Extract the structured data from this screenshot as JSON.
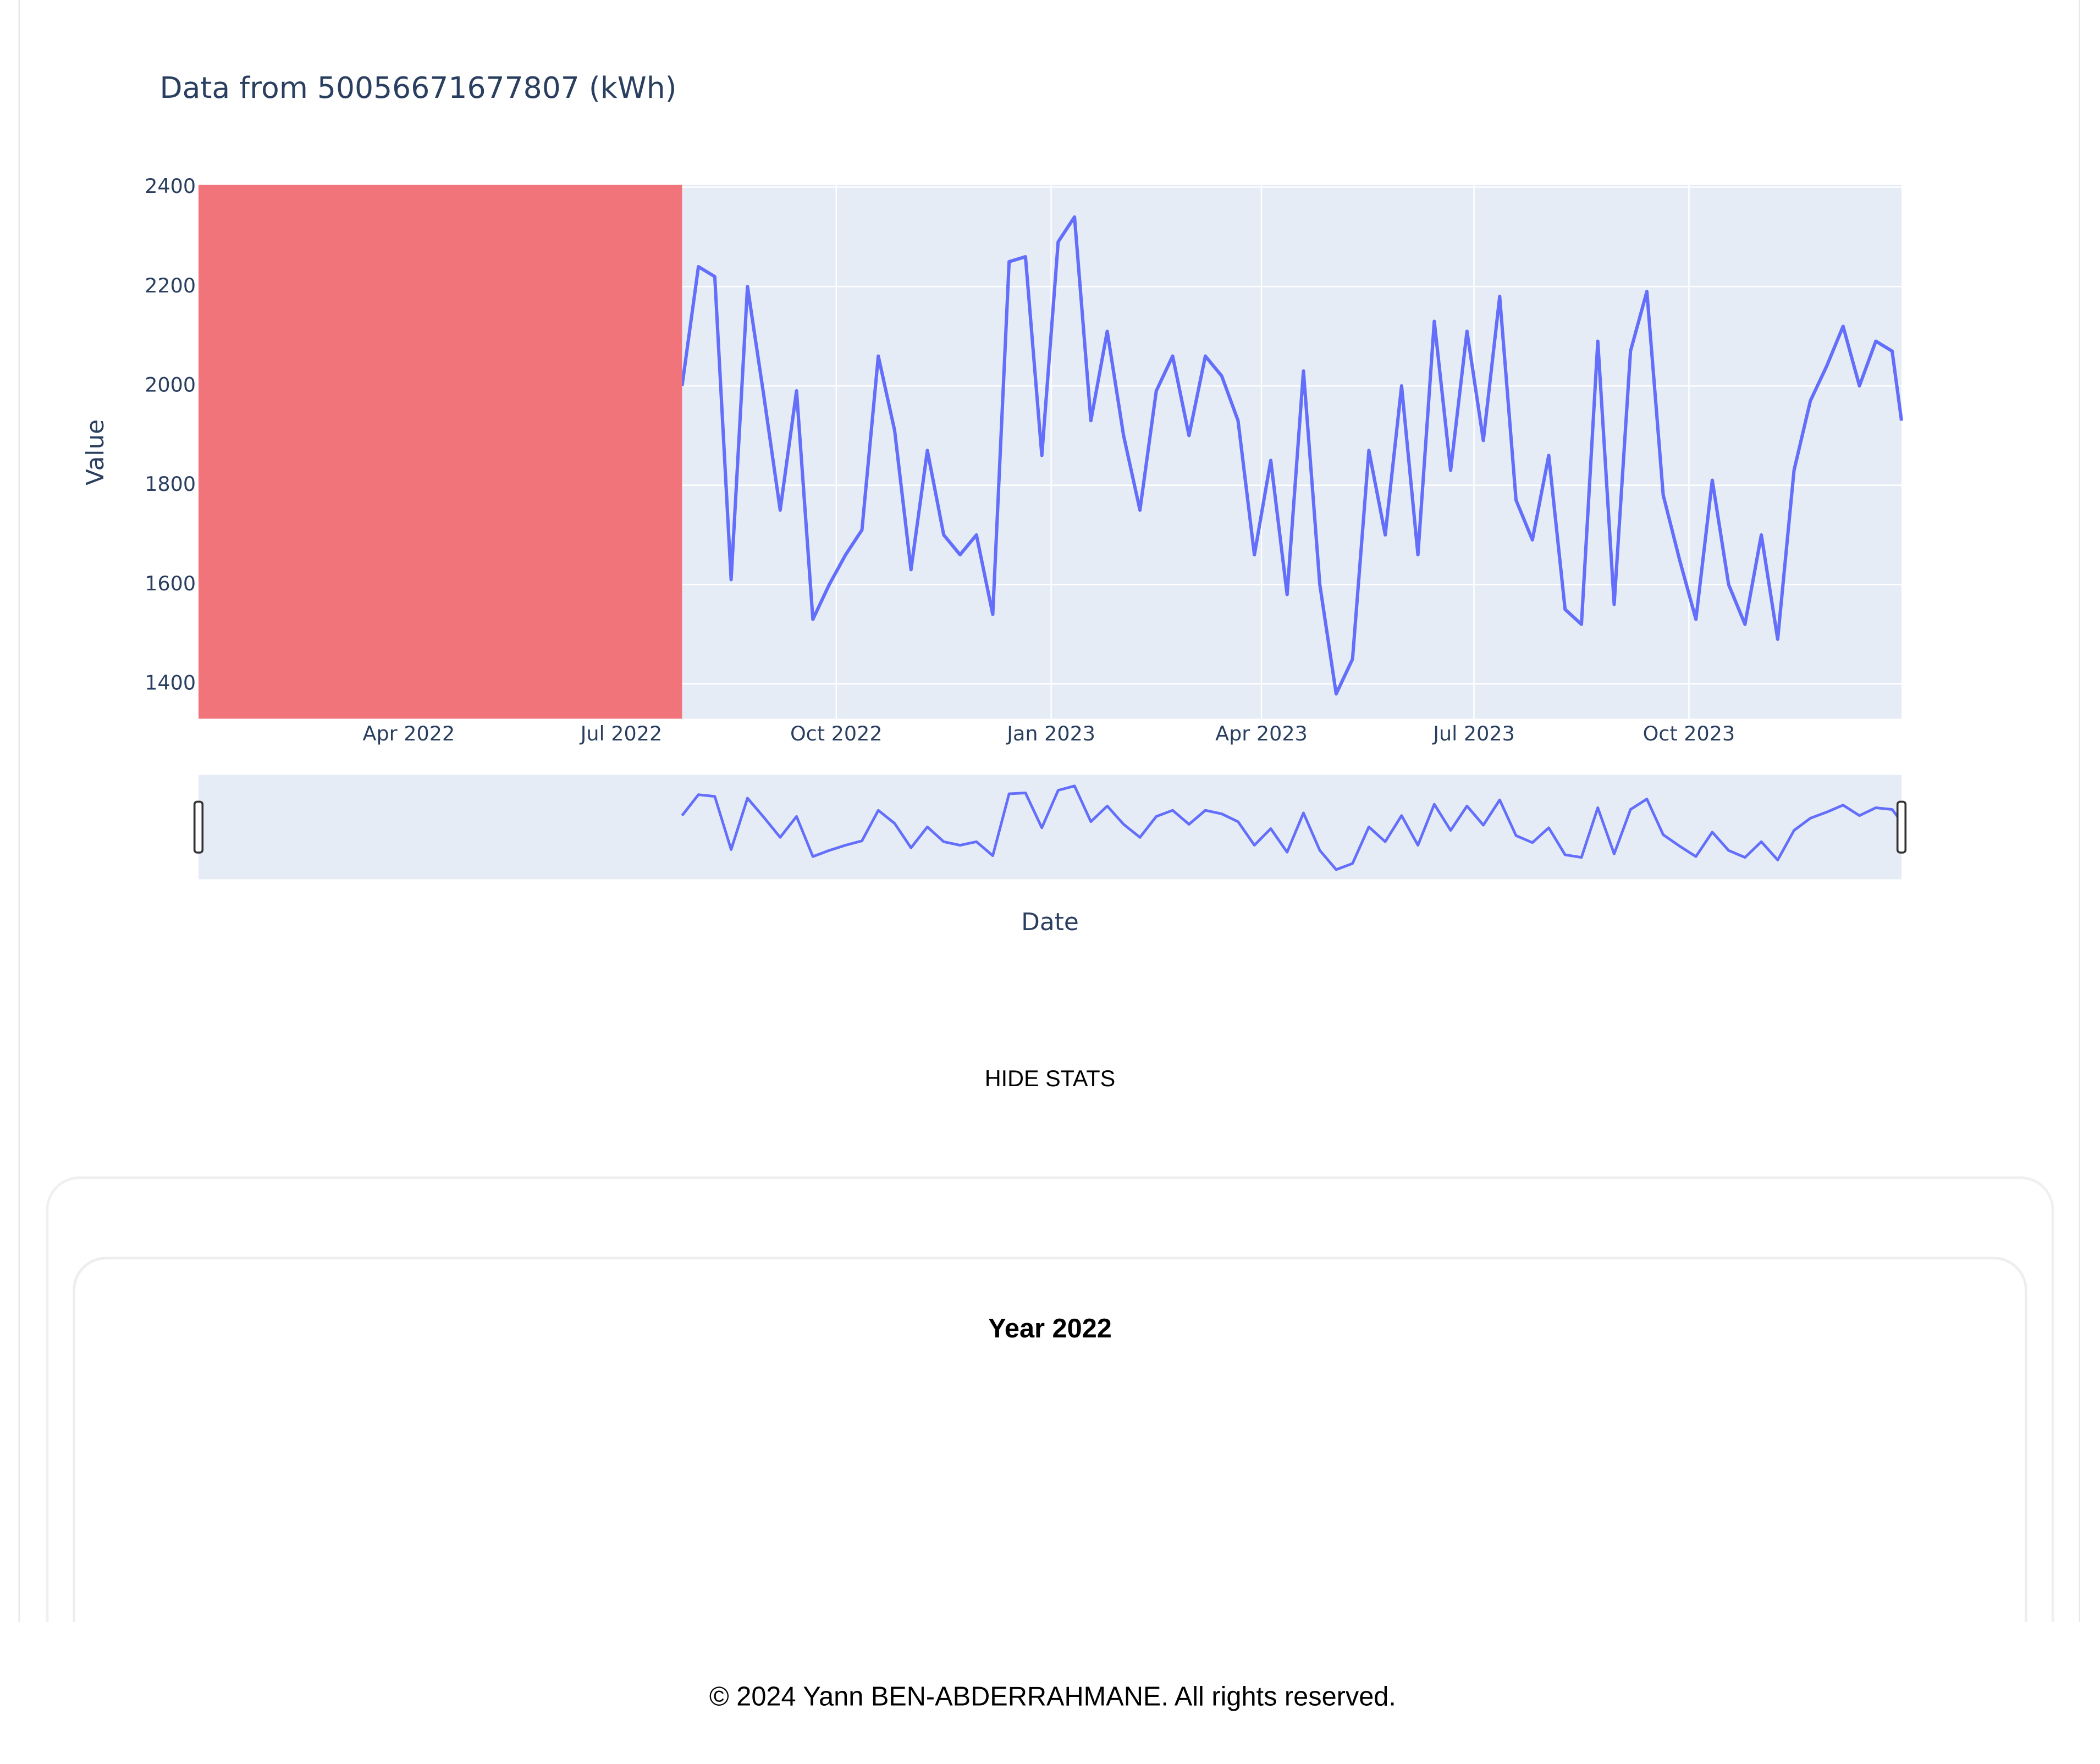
{
  "chart_data": {
    "type": "line",
    "title": "Data from 50056671677807 (kWh)",
    "x_label": "Date",
    "y_label": "Value",
    "x": [
      "2022-07-27",
      "2022-08-03",
      "2022-08-10",
      "2022-08-17",
      "2022-08-24",
      "2022-08-31",
      "2022-09-07",
      "2022-09-14",
      "2022-09-21",
      "2022-09-28",
      "2022-10-05",
      "2022-10-12",
      "2022-10-19",
      "2022-10-26",
      "2022-11-02",
      "2022-11-09",
      "2022-11-16",
      "2022-11-23",
      "2022-11-30",
      "2022-12-07",
      "2022-12-14",
      "2022-12-21",
      "2022-12-28",
      "2023-01-04",
      "2023-01-11",
      "2023-01-18",
      "2023-01-25",
      "2023-02-01",
      "2023-02-08",
      "2023-02-15",
      "2023-02-22",
      "2023-03-01",
      "2023-03-08",
      "2023-03-15",
      "2023-03-22",
      "2023-03-29",
      "2023-04-05",
      "2023-04-12",
      "2023-04-19",
      "2023-04-26",
      "2023-05-03",
      "2023-05-10",
      "2023-05-17",
      "2023-05-24",
      "2023-05-31",
      "2023-06-07",
      "2023-06-14",
      "2023-06-21",
      "2023-06-28",
      "2023-07-05",
      "2023-07-12",
      "2023-07-19",
      "2023-07-26",
      "2023-08-02",
      "2023-08-09",
      "2023-08-16",
      "2023-08-23",
      "2023-08-30",
      "2023-09-06",
      "2023-09-13",
      "2023-09-20",
      "2023-09-27",
      "2023-10-04",
      "2023-10-11",
      "2023-10-18",
      "2023-10-25",
      "2023-11-01",
      "2023-11-08",
      "2023-11-15",
      "2023-11-22",
      "2023-11-29",
      "2023-12-06",
      "2023-12-13",
      "2023-12-20",
      "2023-12-27",
      "2023-12-31"
    ],
    "series": [
      {
        "color": "#636efa",
        "values": [
          2000,
          2240,
          2220,
          1610,
          2200,
          1980,
          1750,
          1990,
          1530,
          1600,
          1660,
          1710,
          2060,
          1910,
          1630,
          1870,
          1700,
          1660,
          1700,
          1540,
          2250,
          2260,
          1860,
          2290,
          2340,
          1930,
          2110,
          1900,
          1750,
          1990,
          2060,
          1900,
          2060,
          2020,
          1930,
          1660,
          1850,
          1580,
          2030,
          1600,
          1380,
          1450,
          1870,
          1700,
          2000,
          1660,
          2130,
          1830,
          2110,
          1890,
          2180,
          1770,
          1690,
          1860,
          1550,
          1520,
          2090,
          1560,
          2070,
          2190,
          1780,
          1650,
          1530,
          1810,
          1600,
          1520,
          1700,
          1490,
          1830,
          1970,
          2040,
          2120,
          2000,
          2090,
          2070,
          1930
        ]
      }
    ],
    "xlim": [
      "2022-01-01",
      "2023-12-31"
    ],
    "xticks": [
      {
        "value": "2022-04-01",
        "label": "Apr 2022"
      },
      {
        "value": "2022-07-01",
        "label": "Jul 2022"
      },
      {
        "value": "2022-10-01",
        "label": "Oct 2022"
      },
      {
        "value": "2023-01-01",
        "label": "Jan 2023"
      },
      {
        "value": "2023-04-01",
        "label": "Apr 2023"
      },
      {
        "value": "2023-07-01",
        "label": "Jul 2023"
      },
      {
        "value": "2023-10-01",
        "label": "Oct 2023"
      }
    ],
    "ylim": [
      1330,
      2405
    ],
    "yticks": [
      1400,
      1600,
      1800,
      2000,
      2200,
      2400
    ],
    "grid": true,
    "shaded_range": {
      "x": [
        "2022-01-01",
        "2022-07-27"
      ],
      "color": "#f2747b"
    },
    "range_slider": true
  },
  "page": {
    "button": "HIDE STATS",
    "stats_heading": "Year 2022",
    "footer": "© 2024 Yann BEN-ABDERRAHMANE. All rights reserved."
  }
}
